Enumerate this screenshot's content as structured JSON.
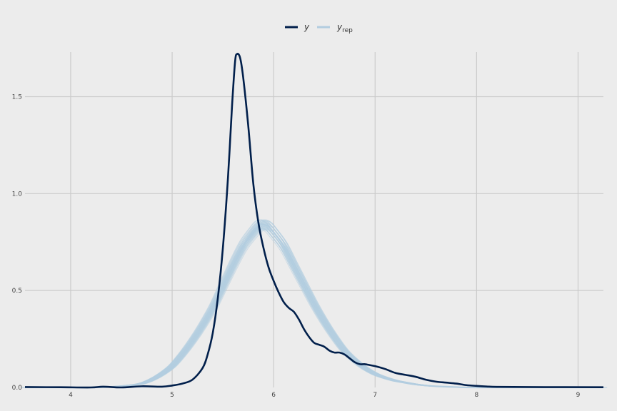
{
  "chart_data": {
    "type": "line",
    "title": "",
    "xlabel": "",
    "ylabel": "",
    "xlim": [
      3.55,
      9.25
    ],
    "ylim": [
      0,
      1.73
    ],
    "grid": true,
    "legend_position": "top-center",
    "x_ticks": [
      4,
      5,
      6,
      7,
      8,
      9
    ],
    "x_tick_labels": [
      "4",
      "5",
      "6",
      "7",
      "8",
      "9"
    ],
    "y_ticks": [
      0,
      0.5,
      1,
      1.5
    ],
    "y_tick_labels": [
      "0.0",
      "0.5",
      "1.0",
      "1.5"
    ],
    "legend": [
      {
        "label": "y",
        "sub": "",
        "color": "#011f4b"
      },
      {
        "label": "y",
        "sub": "rep",
        "color": "#b3cde0"
      }
    ],
    "series": [
      {
        "name": "y",
        "color": "#011f4b",
        "points": [
          [
            3.55,
            0.002
          ],
          [
            3.9,
            0.001
          ],
          [
            4.2,
            0.0
          ],
          [
            4.32,
            0.004
          ],
          [
            4.5,
            0.0
          ],
          [
            4.7,
            0.006
          ],
          [
            4.9,
            0.004
          ],
          [
            5.0,
            0.01
          ],
          [
            5.1,
            0.02
          ],
          [
            5.2,
            0.04
          ],
          [
            5.3,
            0.1
          ],
          [
            5.35,
            0.17
          ],
          [
            5.4,
            0.28
          ],
          [
            5.45,
            0.46
          ],
          [
            5.5,
            0.72
          ],
          [
            5.55,
            1.08
          ],
          [
            5.59,
            1.45
          ],
          [
            5.62,
            1.68
          ],
          [
            5.64,
            1.72
          ],
          [
            5.67,
            1.7
          ],
          [
            5.7,
            1.6
          ],
          [
            5.75,
            1.35
          ],
          [
            5.8,
            1.05
          ],
          [
            5.85,
            0.85
          ],
          [
            5.9,
            0.72
          ],
          [
            5.95,
            0.62
          ],
          [
            6.0,
            0.55
          ],
          [
            6.05,
            0.49
          ],
          [
            6.1,
            0.44
          ],
          [
            6.15,
            0.41
          ],
          [
            6.2,
            0.39
          ],
          [
            6.25,
            0.35
          ],
          [
            6.3,
            0.3
          ],
          [
            6.35,
            0.26
          ],
          [
            6.4,
            0.23
          ],
          [
            6.45,
            0.22
          ],
          [
            6.5,
            0.21
          ],
          [
            6.55,
            0.19
          ],
          [
            6.6,
            0.18
          ],
          [
            6.65,
            0.18
          ],
          [
            6.7,
            0.17
          ],
          [
            6.75,
            0.15
          ],
          [
            6.8,
            0.13
          ],
          [
            6.85,
            0.12
          ],
          [
            6.9,
            0.12
          ],
          [
            6.95,
            0.115
          ],
          [
            7.0,
            0.11
          ],
          [
            7.1,
            0.095
          ],
          [
            7.2,
            0.075
          ],
          [
            7.3,
            0.065
          ],
          [
            7.4,
            0.055
          ],
          [
            7.5,
            0.04
          ],
          [
            7.6,
            0.03
          ],
          [
            7.7,
            0.025
          ],
          [
            7.8,
            0.02
          ],
          [
            7.9,
            0.012
          ],
          [
            8.0,
            0.008
          ],
          [
            8.1,
            0.005
          ],
          [
            8.2,
            0.003
          ],
          [
            8.5,
            0.002
          ],
          [
            9.25,
            0.001
          ]
        ]
      },
      {
        "name": "yrep",
        "color": "#b3cde0",
        "points": [
          [
            3.55,
            0.0
          ],
          [
            4.2,
            0.0
          ],
          [
            4.4,
            0.003
          ],
          [
            4.6,
            0.012
          ],
          [
            4.7,
            0.02
          ],
          [
            4.8,
            0.04
          ],
          [
            4.9,
            0.07
          ],
          [
            5.0,
            0.11
          ],
          [
            5.1,
            0.17
          ],
          [
            5.2,
            0.24
          ],
          [
            5.3,
            0.32
          ],
          [
            5.4,
            0.41
          ],
          [
            5.5,
            0.52
          ],
          [
            5.6,
            0.63
          ],
          [
            5.7,
            0.73
          ],
          [
            5.8,
            0.8
          ],
          [
            5.85,
            0.83
          ],
          [
            5.9,
            0.84
          ],
          [
            5.95,
            0.83
          ],
          [
            6.0,
            0.8
          ],
          [
            6.1,
            0.73
          ],
          [
            6.2,
            0.63
          ],
          [
            6.3,
            0.53
          ],
          [
            6.4,
            0.43
          ],
          [
            6.5,
            0.34
          ],
          [
            6.6,
            0.26
          ],
          [
            6.7,
            0.19
          ],
          [
            6.8,
            0.14
          ],
          [
            6.9,
            0.1
          ],
          [
            7.0,
            0.07
          ],
          [
            7.1,
            0.05
          ],
          [
            7.2,
            0.035
          ],
          [
            7.3,
            0.025
          ],
          [
            7.4,
            0.016
          ],
          [
            7.5,
            0.01
          ],
          [
            7.6,
            0.006
          ],
          [
            7.8,
            0.002
          ],
          [
            8.0,
            0.0
          ],
          [
            9.25,
            0.0
          ]
        ]
      }
    ]
  }
}
